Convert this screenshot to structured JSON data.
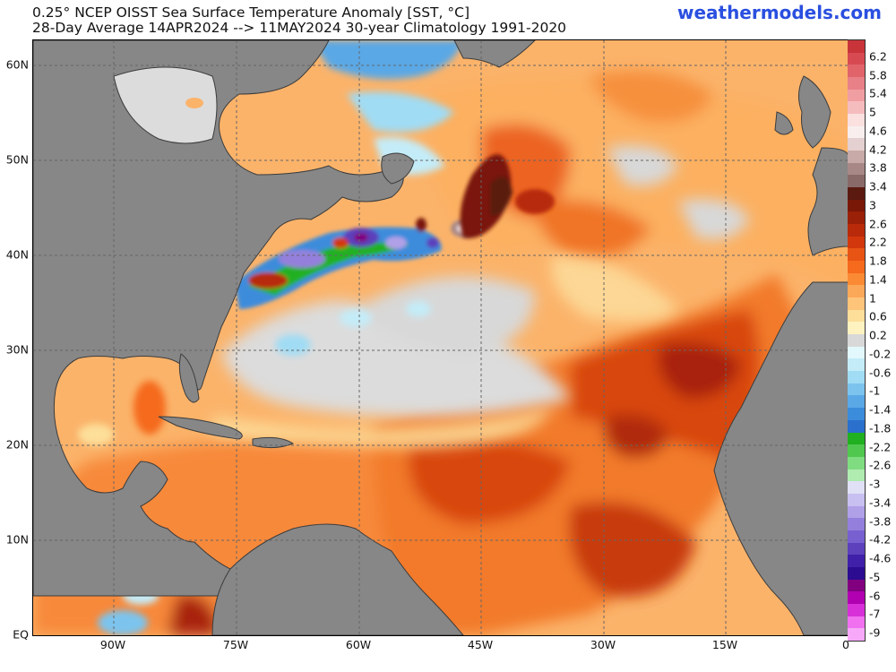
{
  "header": {
    "title_line1": "0.25° NCEP OISST Sea Surface Temperature Anomaly [SST, °C]",
    "title_line2": "28-Day Average 14APR2024 --> 11MAY2024  30-year Climatology 1991-2020",
    "brand": "weathermodels.com"
  },
  "axes": {
    "lat_labels": [
      "60N",
      "50N",
      "40N",
      "30N",
      "20N",
      "10N",
      "EQ"
    ],
    "lon_labels": [
      "90W",
      "75W",
      "60W",
      "45W",
      "30W",
      "15W",
      "0"
    ],
    "lat_range": [
      0,
      62
    ],
    "lon_range": [
      -100,
      0
    ]
  },
  "colorbar": {
    "labels": [
      "6.2",
      "5.8",
      "5.4",
      "5",
      "4.6",
      "4.2",
      "3.8",
      "3.4",
      "3",
      "2.6",
      "2.2",
      "1.8",
      "1.4",
      "1",
      "0.6",
      "0.2",
      "-0.2",
      "-0.6",
      "-1",
      "-1.4",
      "-1.8",
      "-2.2",
      "-2.6",
      "-3",
      "-3.4",
      "-3.8",
      "-4.2",
      "-4.6",
      "-5",
      "-6",
      "-7",
      "-9"
    ],
    "colors": [
      "#c8343a",
      "#d84a52",
      "#e0646a",
      "#e88088",
      "#f09ea2",
      "#f5bcbe",
      "#fbe0e0",
      "#f8eeee",
      "#e4d0d0",
      "#c8aaa8",
      "#a88886",
      "#8a6a68",
      "#5a1a10",
      "#7a1808",
      "#9a2008",
      "#b82a0a",
      "#d2380c",
      "#e85414",
      "#f56a1c",
      "#fb8a34",
      "#fba858",
      "#fdc47a",
      "#fddf9a",
      "#fef2c0",
      "#d8d8d8",
      "#e2f8fc",
      "#c4ecf8",
      "#a0dcf4",
      "#7cc4ee",
      "#5aa8e6",
      "#3c8cdc",
      "#2a70cc",
      "#20b020",
      "#50c850",
      "#80dc80",
      "#b0ecb0",
      "#e0e0f6",
      "#c8c0f0",
      "#b0a0e8",
      "#9480dc",
      "#7860d0",
      "#5c40bc",
      "#4020a8",
      "#2c0c90",
      "#800080",
      "#b000b0",
      "#d830d8",
      "#f070f0",
      "#f8a8f8"
    ]
  },
  "colors": {
    "land": "#878787",
    "land_border": "#3c3c3c",
    "ocean_base": "#fbb36a",
    "grid": "#666666"
  }
}
